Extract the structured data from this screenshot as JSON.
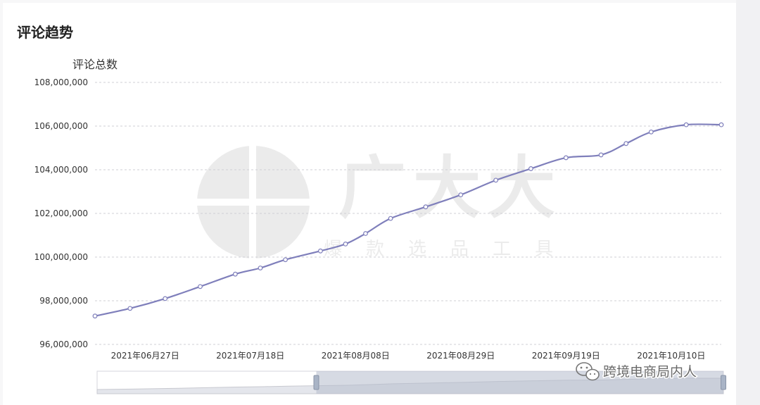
{
  "panel": {
    "title": "评论趋势"
  },
  "chart_data": {
    "type": "line",
    "ylabel": "评论总数",
    "ylim": [
      96000000,
      108000000
    ],
    "yticks": [
      96000000,
      98000000,
      100000000,
      102000000,
      104000000,
      106000000,
      108000000
    ],
    "ytick_labels": [
      "96,000,000",
      "98,000,000",
      "100,000,000",
      "102,000,000",
      "104,000,000",
      "106,000,000",
      "108,000,000"
    ],
    "xlim": [
      "2021-06-17",
      "2021-10-20"
    ],
    "xticks": [
      "2021-06-27",
      "2021-07-18",
      "2021-08-08",
      "2021-08-29",
      "2021-09-19",
      "2021-10-10"
    ],
    "xtick_labels": [
      "2021年06月27日",
      "2021年07月18日",
      "2021年08月08日",
      "2021年08月29日",
      "2021年09月19日",
      "2021年10月10日"
    ],
    "grid": true,
    "series": [
      {
        "color": "#7f7fbb",
        "x": [
          "2021-06-17",
          "2021-06-24",
          "2021-07-01",
          "2021-07-08",
          "2021-07-15",
          "2021-07-20",
          "2021-07-25",
          "2021-08-01",
          "2021-08-06",
          "2021-08-10",
          "2021-08-15",
          "2021-08-22",
          "2021-08-29",
          "2021-09-05",
          "2021-09-12",
          "2021-09-19",
          "2021-09-26",
          "2021-10-01",
          "2021-10-06",
          "2021-10-13",
          "2021-10-20"
        ],
        "y": [
          97300000,
          97650000,
          98100000,
          98650000,
          99220000,
          99500000,
          99880000,
          100280000,
          100600000,
          101080000,
          101770000,
          102300000,
          102850000,
          103520000,
          104050000,
          104550000,
          104680000,
          105200000,
          105730000,
          106060000,
          106060000
        ]
      }
    ]
  },
  "data_zoom": {
    "range_start": 0.35,
    "range_end": 1.0
  },
  "watermark": {
    "brand": "广大大",
    "slogan": "爆款选品工具",
    "account": "跨境电商局内人"
  }
}
